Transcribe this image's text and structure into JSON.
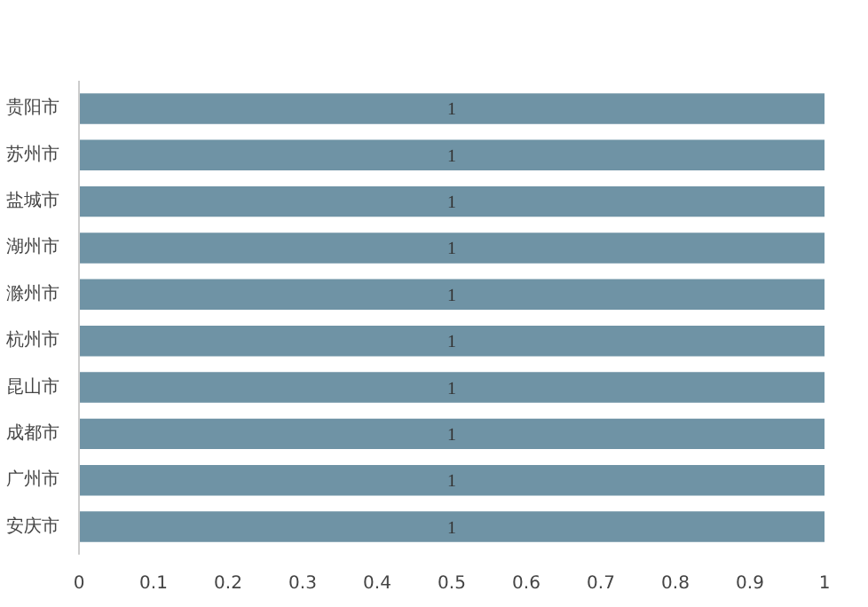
{
  "chart_data": {
    "type": "bar",
    "orientation": "horizontal",
    "categories": [
      "贵阳市",
      "苏州市",
      "盐城市",
      "湖州市",
      "滁州市",
      "杭州市",
      "昆山市",
      "成都市",
      "广州市",
      "安庆市"
    ],
    "values": [
      1,
      1,
      1,
      1,
      1,
      1,
      1,
      1,
      1,
      1
    ],
    "color": "#6f93a5",
    "xlim": [
      0,
      1
    ],
    "xticks": [
      0,
      {
        "value": 0.1,
        "label": "0.1"
      },
      {
        "value": 0.2,
        "label": "0.2"
      },
      {
        "value": 0.3,
        "label": "0.3"
      },
      {
        "value": 0.4,
        "label": "0.4"
      },
      {
        "value": 0.5,
        "label": "0.5"
      },
      {
        "value": 0.6,
        "label": "0.6"
      },
      {
        "value": 0.7,
        "label": "0.7"
      },
      {
        "value": 0.8,
        "label": "0.8"
      },
      {
        "value": 0.9,
        "label": "0.9"
      },
      1
    ],
    "data_labels": true,
    "grid": false
  }
}
